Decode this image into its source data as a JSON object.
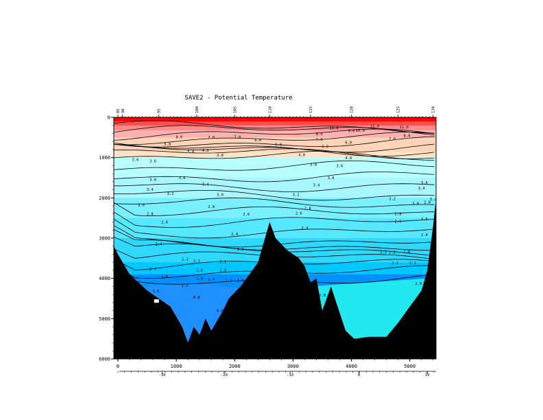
{
  "title": "SAVE2 - Potential Temperature",
  "chart_data": {
    "type": "contour",
    "title": "SAVE2 - Potential Temperature",
    "xlabel": "",
    "ylabel": "",
    "xlim": [
      -70,
      5450
    ],
    "ylim": [
      0,
      6000
    ],
    "y_inverted": true,
    "x_ticks": [
      0,
      1000,
      2000,
      3000,
      4000,
      5000
    ],
    "y_ticks": [
      0,
      1000,
      2000,
      3000,
      4000,
      5000,
      6000
    ],
    "lat_axis": {
      "ticks": [
        {
          "x": 760,
          "label": "-30"
        },
        {
          "x": 1820,
          "label": "-20"
        },
        {
          "x": 2950,
          "label": "-10"
        },
        {
          "x": 4130,
          "label": "0"
        },
        {
          "x": 5300,
          "label": "10"
        }
      ]
    },
    "station_markers": {
      "ticks": [
        {
          "x": 0,
          "label": "85"
        },
        {
          "x": 80,
          "label": "90"
        },
        {
          "x": 700,
          "label": "95"
        },
        {
          "x": 1350,
          "label": "100"
        },
        {
          "x": 2000,
          "label": "105"
        },
        {
          "x": 2600,
          "label": "110"
        },
        {
          "x": 3300,
          "label": "115"
        },
        {
          "x": 4000,
          "label": "120"
        },
        {
          "x": 4800,
          "label": "125"
        },
        {
          "x": 5400,
          "label": "130"
        }
      ]
    },
    "contour_levels": [
      1.2,
      1.4,
      1.6,
      1.8,
      2.0,
      2.1,
      2.2,
      2.4,
      2.6,
      2.8,
      3.0,
      3.2,
      3.4,
      3.6,
      3.8,
      4.0,
      5.0,
      6.0,
      7.0,
      8.0,
      9.0,
      10.0,
      11.0,
      12.0
    ],
    "contour_labels": [
      {
        "x": 4900,
        "y": 270,
        "text": "12.0"
      },
      {
        "x": 4400,
        "y": 250,
        "text": "11.0"
      },
      {
        "x": 3700,
        "y": 300,
        "text": "10.0"
      },
      {
        "x": 4150,
        "y": 360,
        "text": "10.0"
      },
      {
        "x": 4000,
        "y": 370,
        "text": "9.0"
      },
      {
        "x": 3450,
        "y": 440,
        "text": "8.0"
      },
      {
        "x": 4950,
        "y": 490,
        "text": "8.0"
      },
      {
        "x": 1050,
        "y": 520,
        "text": "8.0"
      },
      {
        "x": 1600,
        "y": 530,
        "text": "7.0"
      },
      {
        "x": 2050,
        "y": 520,
        "text": "7.0"
      },
      {
        "x": 3450,
        "y": 580,
        "text": "7.0"
      },
      {
        "x": 4700,
        "y": 560,
        "text": "7.0"
      },
      {
        "x": 2400,
        "y": 600,
        "text": "6.0"
      },
      {
        "x": 3950,
        "y": 660,
        "text": "6.0"
      },
      {
        "x": 850,
        "y": 700,
        "text": "5.0"
      },
      {
        "x": 2750,
        "y": 710,
        "text": "5.0"
      },
      {
        "x": 3550,
        "y": 760,
        "text": "5.0"
      },
      {
        "x": 1250,
        "y": 890,
        "text": "5.0"
      },
      {
        "x": 1500,
        "y": 850,
        "text": "4.0"
      },
      {
        "x": 3150,
        "y": 960,
        "text": "4.0"
      },
      {
        "x": 3950,
        "y": 1040,
        "text": "4.0"
      },
      {
        "x": 1750,
        "y": 970,
        "text": "3.8"
      },
      {
        "x": 3350,
        "y": 1200,
        "text": "3.8"
      },
      {
        "x": 300,
        "y": 1080,
        "text": "3.6"
      },
      {
        "x": 600,
        "y": 1120,
        "text": "3.6"
      },
      {
        "x": 3650,
        "y": 1530,
        "text": "3.6"
      },
      {
        "x": 5250,
        "y": 1650,
        "text": "3.6"
      },
      {
        "x": 1100,
        "y": 1530,
        "text": "3.6"
      },
      {
        "x": 600,
        "y": 1580,
        "text": "3.8"
      },
      {
        "x": 3800,
        "y": 1240,
        "text": "3.6"
      },
      {
        "x": 1500,
        "y": 1700,
        "text": "3.4"
      },
      {
        "x": 3400,
        "y": 1710,
        "text": "3.4"
      },
      {
        "x": 5200,
        "y": 1790,
        "text": "3.4"
      },
      {
        "x": 550,
        "y": 1820,
        "text": "3.4"
      },
      {
        "x": 900,
        "y": 1930,
        "text": "3.2"
      },
      {
        "x": 1750,
        "y": 1950,
        "text": "3.0"
      },
      {
        "x": 3050,
        "y": 1950,
        "text": "3.2"
      },
      {
        "x": 4700,
        "y": 2050,
        "text": "3.2"
      },
      {
        "x": 5400,
        "y": 2060,
        "text": "3.2"
      },
      {
        "x": 400,
        "y": 2210,
        "text": "3.0"
      },
      {
        "x": 5100,
        "y": 2170,
        "text": "3.0"
      },
      {
        "x": 5300,
        "y": 2140,
        "text": "2.8"
      },
      {
        "x": 1600,
        "y": 2250,
        "text": "2.8"
      },
      {
        "x": 3250,
        "y": 2290,
        "text": "2.8"
      },
      {
        "x": 550,
        "y": 2430,
        "text": "2.8"
      },
      {
        "x": 4800,
        "y": 2430,
        "text": "2.8"
      },
      {
        "x": 5250,
        "y": 2560,
        "text": "2.6"
      },
      {
        "x": 2200,
        "y": 2440,
        "text": "2.6"
      },
      {
        "x": 3100,
        "y": 2410,
        "text": "2.6"
      },
      {
        "x": 4800,
        "y": 2620,
        "text": "2.6"
      },
      {
        "x": 800,
        "y": 2630,
        "text": "2.6"
      },
      {
        "x": 3200,
        "y": 2780,
        "text": "2.4"
      },
      {
        "x": 2000,
        "y": 2930,
        "text": "2.4"
      },
      {
        "x": 5250,
        "y": 2950,
        "text": "2.4"
      },
      {
        "x": 700,
        "y": 3180,
        "text": "2.4"
      },
      {
        "x": 2100,
        "y": 3310,
        "text": "2.2"
      },
      {
        "x": 4550,
        "y": 3370,
        "text": "2.2"
      },
      {
        "x": 4700,
        "y": 3380,
        "text": "2.2"
      },
      {
        "x": 1150,
        "y": 3550,
        "text": "2.2"
      },
      {
        "x": 4950,
        "y": 3370,
        "text": "2.0"
      },
      {
        "x": 1350,
        "y": 3600,
        "text": "2.1"
      },
      {
        "x": 1800,
        "y": 3620,
        "text": "2.1"
      },
      {
        "x": 4750,
        "y": 3650,
        "text": "2.1"
      },
      {
        "x": 5050,
        "y": 3650,
        "text": "2.1"
      },
      {
        "x": 600,
        "y": 3800,
        "text": "2.0"
      },
      {
        "x": 1400,
        "y": 3830,
        "text": "1.8"
      },
      {
        "x": 1800,
        "y": 3830,
        "text": "1.8"
      },
      {
        "x": 800,
        "y": 3980,
        "text": "1.6"
      },
      {
        "x": 1400,
        "y": 4030,
        "text": "1.4"
      },
      {
        "x": 1600,
        "y": 4050,
        "text": "1.4"
      },
      {
        "x": 1900,
        "y": 4080,
        "text": "1.2"
      },
      {
        "x": 2100,
        "y": 4080,
        "text": "1.4"
      },
      {
        "x": 1150,
        "y": 4200,
        "text": "1.2"
      },
      {
        "x": 5150,
        "y": 4160,
        "text": "2.0"
      },
      {
        "x": 650,
        "y": 4350,
        "text": "1.0"
      },
      {
        "x": 1350,
        "y": 4500,
        "text": "0.8"
      },
      {
        "x": 3500,
        "y": 4450,
        "text": "2.0"
      },
      {
        "x": 1750,
        "y": 4830,
        "text": "0.6"
      }
    ],
    "color_bands": [
      {
        "top": 0,
        "color": "#ff0000"
      },
      {
        "top": 100,
        "color": "#ff4d4d"
      },
      {
        "top": 200,
        "color": "#ff8a8a"
      },
      {
        "top": 320,
        "color": "#ffb0b0"
      },
      {
        "top": 500,
        "color": "#ffd4b8"
      },
      {
        "top": 850,
        "color": "#ffe3c7"
      },
      {
        "top": 1000,
        "color": "#b8ffff"
      },
      {
        "top": 1500,
        "color": "#a8f7ff"
      },
      {
        "top": 2000,
        "color": "#7af0ff"
      },
      {
        "top": 2500,
        "color": "#55e8ff"
      },
      {
        "top": 3000,
        "color": "#2ed8ff"
      },
      {
        "top": 3600,
        "color": "#00c8ff"
      },
      {
        "top": 3900,
        "color": "#0090ff"
      }
    ],
    "bathymetry": [
      [
        -70,
        3200
      ],
      [
        0,
        3400
      ],
      [
        200,
        3900
      ],
      [
        500,
        4300
      ],
      [
        700,
        4500
      ],
      [
        900,
        4700
      ],
      [
        1100,
        5200
      ],
      [
        1200,
        5600
      ],
      [
        1300,
        5200
      ],
      [
        1400,
        5400
      ],
      [
        1500,
        5000
      ],
      [
        1600,
        5300
      ],
      [
        1800,
        4800
      ],
      [
        1900,
        4500
      ],
      [
        2100,
        4200
      ],
      [
        2200,
        4000
      ],
      [
        2400,
        3600
      ],
      [
        2600,
        2600
      ],
      [
        2700,
        3000
      ],
      [
        2900,
        3300
      ],
      [
        3100,
        3500
      ],
      [
        3200,
        3700
      ],
      [
        3300,
        4100
      ],
      [
        3400,
        4000
      ],
      [
        3500,
        4800
      ],
      [
        3650,
        4200
      ],
      [
        3900,
        5300
      ],
      [
        4050,
        5500
      ],
      [
        4300,
        5450
      ],
      [
        4600,
        5450
      ],
      [
        4800,
        5100
      ],
      [
        5000,
        4700
      ],
      [
        5200,
        4300
      ],
      [
        5300,
        3800
      ],
      [
        5400,
        2700
      ],
      [
        5450,
        2000
      ],
      [
        5450,
        6000
      ],
      [
        -70,
        6000
      ]
    ],
    "colors": {
      "warm_surface": "#ff0000",
      "mid_water": "#a8f7ff",
      "deep_cold": "#0090ff",
      "terrain": "#000000",
      "white_patch": "#ffffff"
    }
  }
}
